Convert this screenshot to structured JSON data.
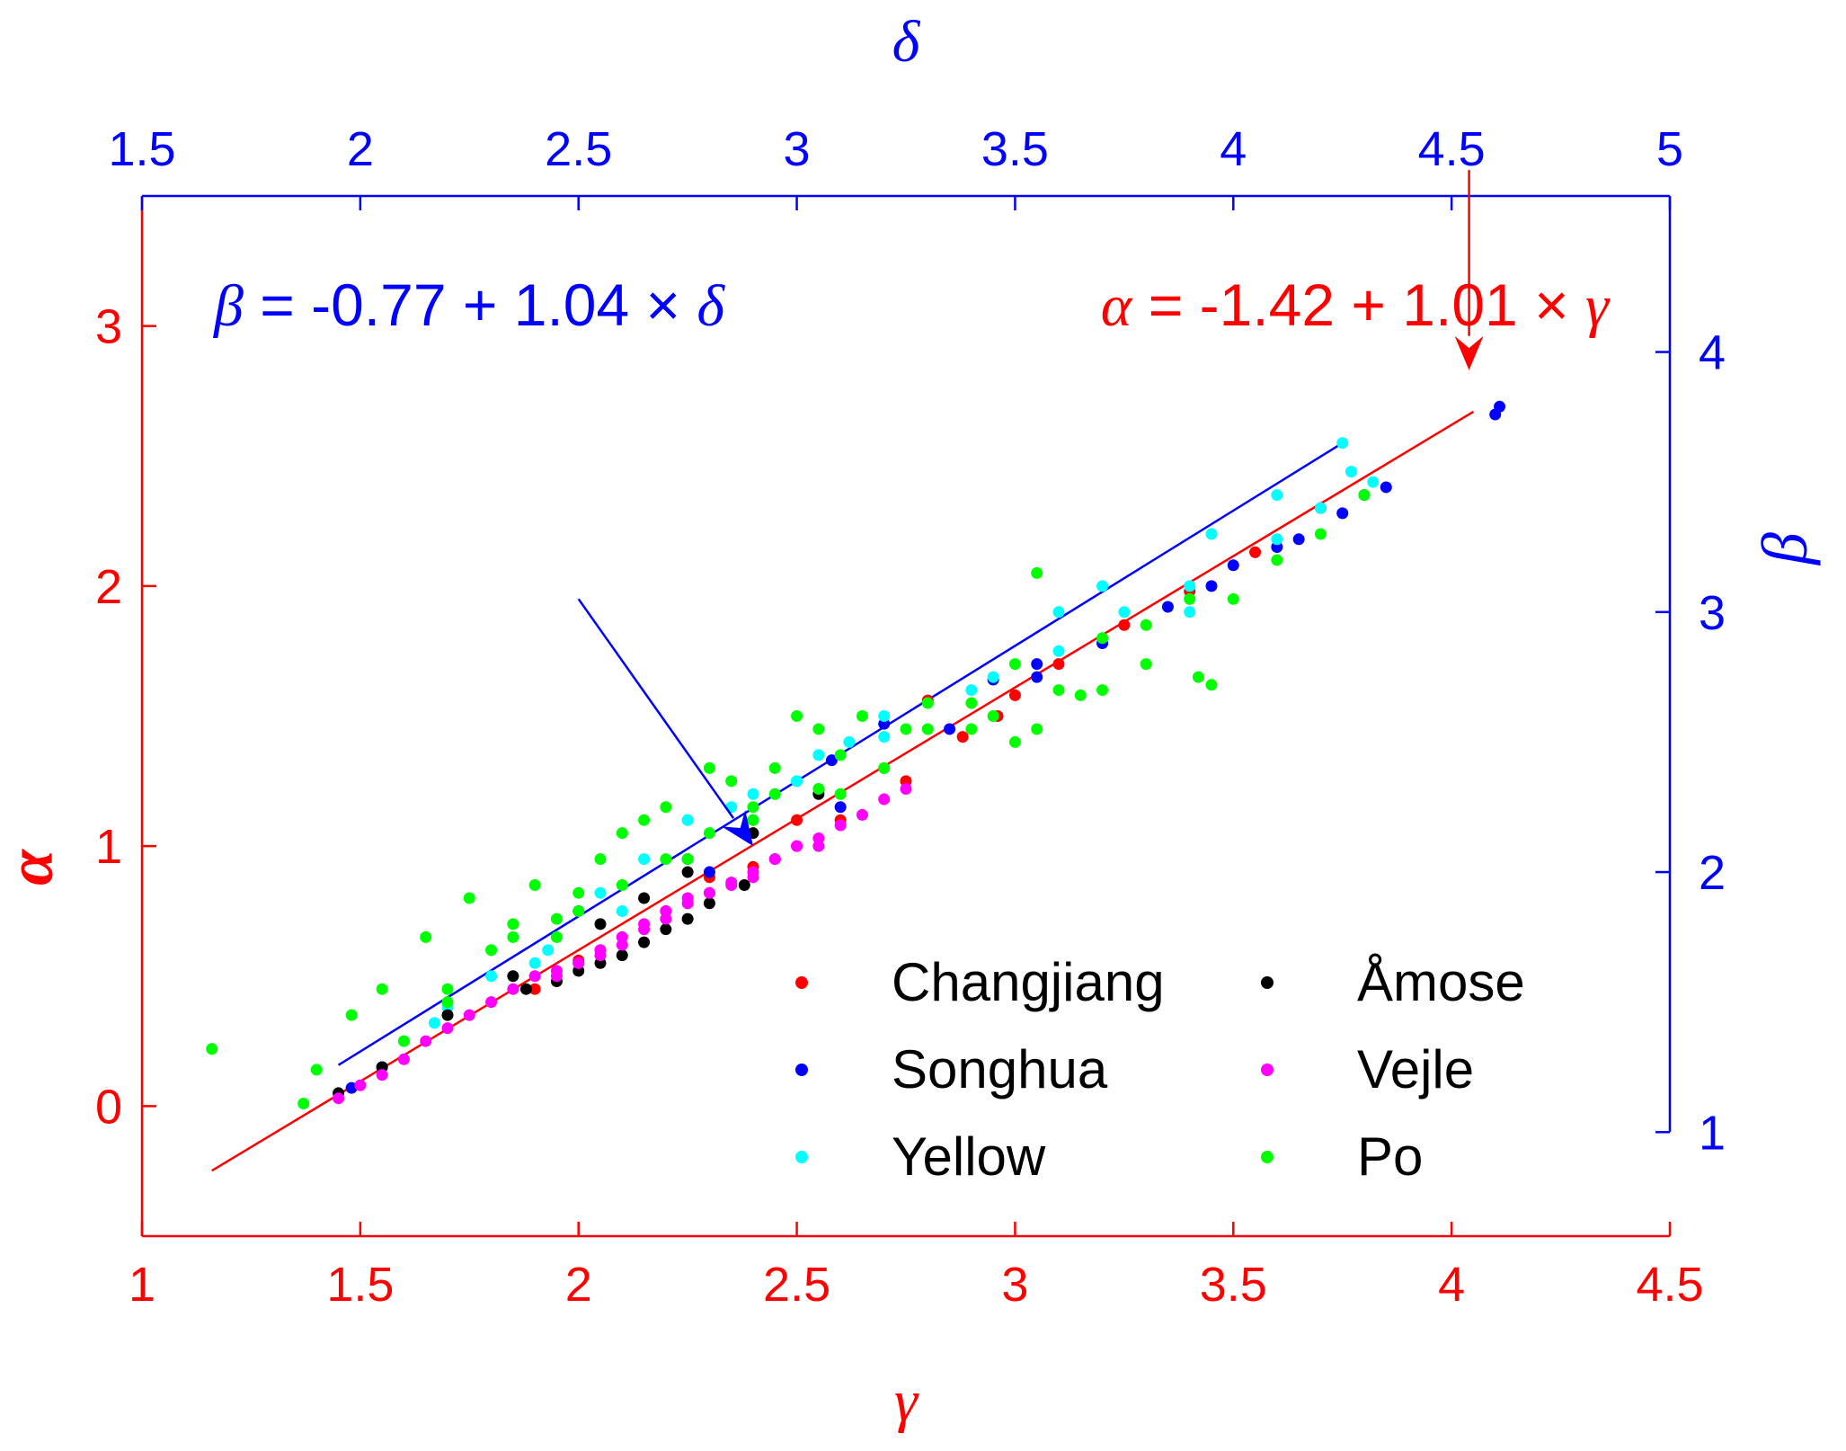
{
  "chart_data": {
    "type": "scatter",
    "colors": {
      "primary_axes": "#ff0000",
      "secondary_axes": "#0000ff",
      "fit_primary": "#ff0000",
      "fit_secondary": "#0000ff"
    },
    "primary_axes": {
      "xlabel": "γ",
      "ylabel": "α",
      "xlim": [
        1,
        4.5
      ],
      "ylim": [
        -0.5,
        3.5
      ],
      "xticks": [
        1,
        1.5,
        2,
        2.5,
        3,
        3.5,
        4,
        4.5
      ],
      "xtick_labels": [
        "1",
        "1.5",
        "2",
        "2.5",
        "3",
        "3.5",
        "4",
        "4.5"
      ],
      "yticks": [
        0,
        1,
        2,
        3
      ],
      "ytick_labels": [
        "0",
        "1",
        "2",
        "3"
      ]
    },
    "secondary_axes": {
      "xlabel": "δ",
      "ylabel": "β",
      "xlim": [
        1.5,
        5
      ],
      "ylim": [
        0.6,
        4.6
      ],
      "xticks": [
        1.5,
        2,
        2.5,
        3,
        3.5,
        4,
        4.5,
        5
      ],
      "xtick_labels": [
        "1.5",
        "2",
        "2.5",
        "3",
        "3.5",
        "4",
        "4.5",
        "5"
      ],
      "yticks": [
        1,
        2,
        3,
        4
      ],
      "ytick_labels": [
        "1",
        "2",
        "3",
        "4"
      ]
    },
    "fits": [
      {
        "axes": "primary",
        "equation_var": "α",
        "equation_mid": " = -1.42 + 1.01 × ",
        "equation_x": "γ",
        "intercept": -1.42,
        "slope": 1.01,
        "x_range": [
          1.16,
          4.05
        ],
        "arrow_from": [
          4.04,
          3.6
        ],
        "arrow_to": [
          4.04,
          2.83
        ]
      },
      {
        "axes": "secondary",
        "equation_var": "β",
        "equation_mid": " = -0.77 + 1.04 × ",
        "equation_x": "δ",
        "intercept": -0.77,
        "slope": 1.04,
        "x_range": [
          1.95,
          4.25
        ],
        "arrow_from": [
          2.5,
          3.05
        ],
        "arrow_to": [
          2.9,
          2.1
        ]
      }
    ],
    "legend": {
      "placement": "bottom-right",
      "columns": 2
    },
    "series": [
      {
        "name": "Changjiang",
        "color": "#ff0000",
        "primary_points": [
          [
            1.9,
            0.45
          ],
          [
            2.05,
            0.6
          ],
          [
            2.2,
            0.75
          ],
          [
            2.4,
            0.92
          ],
          [
            2.6,
            1.1
          ],
          [
            2.75,
            1.25
          ],
          [
            2.88,
            1.42
          ],
          [
            2.96,
            1.5
          ],
          [
            3.0,
            1.58
          ],
          [
            3.1,
            1.7
          ],
          [
            3.25,
            1.85
          ],
          [
            3.4,
            1.98
          ],
          [
            3.55,
            2.13
          ],
          [
            3.7,
            2.3
          ]
        ],
        "secondary_points": [
          [
            2.5,
            1.66
          ],
          [
            2.8,
            1.98
          ],
          [
            3.0,
            2.2
          ],
          [
            3.3,
            2.66
          ]
        ]
      },
      {
        "name": "Songhua",
        "color": "#0000ff",
        "primary_points": [
          [
            2.3,
            0.9
          ],
          [
            2.6,
            1.15
          ],
          [
            2.85,
            1.45
          ],
          [
            3.05,
            1.65
          ],
          [
            3.2,
            1.78
          ],
          [
            3.35,
            1.92
          ],
          [
            3.45,
            2.0
          ],
          [
            3.5,
            2.08
          ],
          [
            3.6,
            2.15
          ],
          [
            3.65,
            2.18
          ],
          [
            3.75,
            2.28
          ],
          [
            3.8,
            2.35
          ],
          [
            3.85,
            2.38
          ],
          [
            4.1,
            2.66
          ],
          [
            4.11,
            2.69
          ]
        ],
        "secondary_points": [
          [
            1.98,
            1.17
          ],
          [
            2.05,
            1.25
          ],
          [
            2.5,
            1.85
          ],
          [
            2.75,
            2.05
          ],
          [
            2.9,
            2.2
          ],
          [
            3.08,
            2.43
          ],
          [
            3.2,
            2.57
          ],
          [
            3.45,
            2.74
          ],
          [
            3.55,
            2.8
          ]
        ]
      },
      {
        "name": "Yellow",
        "color": "#00ffff",
        "primary_points": [
          [
            1.67,
            0.32
          ],
          [
            1.7,
            0.38
          ],
          [
            1.8,
            0.6
          ],
          [
            1.93,
            0.6
          ],
          [
            2.1,
            0.75
          ],
          [
            2.25,
            1.1
          ],
          [
            2.4,
            1.2
          ],
          [
            2.5,
            1.25
          ],
          [
            2.55,
            1.35
          ],
          [
            2.62,
            1.4
          ],
          [
            2.7,
            1.42
          ],
          [
            2.9,
            1.6
          ],
          [
            3.1,
            1.75
          ],
          [
            3.25,
            1.9
          ],
          [
            3.4,
            2.0
          ],
          [
            3.6,
            2.18
          ],
          [
            3.7,
            2.3
          ],
          [
            3.77,
            2.44
          ],
          [
            3.82,
            2.4
          ]
        ],
        "secondary_points": [
          [
            2.1,
            1.35
          ],
          [
            2.3,
            1.6
          ],
          [
            2.4,
            1.65
          ],
          [
            2.55,
            1.92
          ],
          [
            2.65,
            2.05
          ],
          [
            2.75,
            2.2
          ],
          [
            2.85,
            2.25
          ],
          [
            3.0,
            2.35
          ],
          [
            3.2,
            2.6
          ],
          [
            3.45,
            2.75
          ],
          [
            3.6,
            3.0
          ],
          [
            3.7,
            3.1
          ],
          [
            3.9,
            3.0
          ],
          [
            3.95,
            3.3
          ],
          [
            4.1,
            3.45
          ],
          [
            4.25,
            3.65
          ]
        ]
      },
      {
        "name": "Åmose",
        "color": "#000000",
        "primary_points": [
          [
            1.88,
            0.45
          ],
          [
            1.95,
            0.48
          ],
          [
            2.0,
            0.52
          ],
          [
            2.05,
            0.55
          ],
          [
            2.1,
            0.58
          ],
          [
            2.15,
            0.63
          ],
          [
            2.2,
            0.68
          ],
          [
            2.25,
            0.72
          ],
          [
            2.3,
            0.78
          ],
          [
            2.38,
            0.85
          ]
        ],
        "secondary_points": [
          [
            1.95,
            1.15
          ],
          [
            2.05,
            1.25
          ],
          [
            2.2,
            1.45
          ],
          [
            2.35,
            1.6
          ],
          [
            2.55,
            1.8
          ],
          [
            2.65,
            1.9
          ],
          [
            2.75,
            2.0
          ],
          [
            2.9,
            2.15
          ],
          [
            3.05,
            2.3
          ]
        ]
      },
      {
        "name": "Vejle",
        "color": "#ff00ff",
        "primary_points": [
          [
            1.95,
            0.5
          ],
          [
            2.0,
            0.55
          ],
          [
            2.05,
            0.58
          ],
          [
            2.1,
            0.62
          ],
          [
            2.15,
            0.68
          ],
          [
            2.2,
            0.72
          ],
          [
            2.25,
            0.78
          ],
          [
            2.3,
            0.82
          ],
          [
            2.35,
            0.86
          ],
          [
            2.4,
            0.9
          ],
          [
            2.45,
            0.95
          ],
          [
            2.5,
            1.0
          ],
          [
            2.55,
            1.03
          ],
          [
            2.6,
            1.08
          ],
          [
            2.65,
            1.12
          ],
          [
            2.7,
            1.18
          ],
          [
            2.75,
            1.22
          ]
        ],
        "secondary_points": [
          [
            1.95,
            1.13
          ],
          [
            2.0,
            1.18
          ],
          [
            2.05,
            1.22
          ],
          [
            2.1,
            1.28
          ],
          [
            2.15,
            1.35
          ],
          [
            2.2,
            1.4
          ],
          [
            2.25,
            1.45
          ],
          [
            2.3,
            1.5
          ],
          [
            2.35,
            1.55
          ],
          [
            2.4,
            1.6
          ],
          [
            2.45,
            1.62
          ],
          [
            2.5,
            1.65
          ],
          [
            2.55,
            1.7
          ],
          [
            2.6,
            1.75
          ],
          [
            2.65,
            1.8
          ],
          [
            2.7,
            1.85
          ],
          [
            2.75,
            1.9
          ],
          [
            2.8,
            1.92
          ],
          [
            2.85,
            1.95
          ],
          [
            2.9,
            1.98
          ],
          [
            2.95,
            2.05
          ],
          [
            3.0,
            2.1
          ],
          [
            3.05,
            2.1
          ]
        ]
      },
      {
        "name": "Po",
        "color": "#00ff00",
        "primary_points": [
          [
            1.16,
            0.22
          ],
          [
            1.37,
            0.01
          ],
          [
            1.4,
            0.14
          ],
          [
            1.7,
            0.4
          ],
          [
            1.85,
            0.65
          ],
          [
            1.95,
            0.72
          ],
          [
            2.0,
            0.82
          ],
          [
            2.1,
            0.85
          ],
          [
            2.2,
            0.95
          ],
          [
            2.3,
            1.05
          ],
          [
            2.4,
            1.1
          ],
          [
            2.45,
            1.2
          ],
          [
            2.55,
            1.22
          ],
          [
            2.6,
            1.35
          ],
          [
            2.7,
            1.3
          ],
          [
            2.8,
            1.45
          ],
          [
            2.9,
            1.55
          ],
          [
            2.95,
            1.5
          ],
          [
            3.0,
            1.7
          ],
          [
            3.05,
            2.05
          ],
          [
            3.1,
            1.6
          ],
          [
            3.2,
            1.8
          ],
          [
            3.3,
            1.85
          ],
          [
            3.4,
            1.95
          ],
          [
            3.5,
            1.95
          ],
          [
            3.6,
            2.1
          ],
          [
            3.7,
            2.2
          ],
          [
            3.8,
            2.35
          ]
        ],
        "secondary_points": [
          [
            1.98,
            1.45
          ],
          [
            2.05,
            1.55
          ],
          [
            2.1,
            1.35
          ],
          [
            2.15,
            1.75
          ],
          [
            2.2,
            1.55
          ],
          [
            2.25,
            1.9
          ],
          [
            2.3,
            1.7
          ],
          [
            2.35,
            1.8
          ],
          [
            2.4,
            1.95
          ],
          [
            2.45,
            1.75
          ],
          [
            2.5,
            1.85
          ],
          [
            2.55,
            2.05
          ],
          [
            2.6,
            2.15
          ],
          [
            2.65,
            2.2
          ],
          [
            2.7,
            2.25
          ],
          [
            2.75,
            2.05
          ],
          [
            2.8,
            2.4
          ],
          [
            2.85,
            2.35
          ],
          [
            2.9,
            2.25
          ],
          [
            2.95,
            2.4
          ],
          [
            3.0,
            2.6
          ],
          [
            3.05,
            2.55
          ],
          [
            3.1,
            2.3
          ],
          [
            3.15,
            2.6
          ],
          [
            3.2,
            2.4
          ],
          [
            3.25,
            2.55
          ],
          [
            3.3,
            2.65
          ],
          [
            3.4,
            2.55
          ],
          [
            3.5,
            2.5
          ],
          [
            3.55,
            2.55
          ],
          [
            3.65,
            2.68
          ],
          [
            3.7,
            2.7
          ],
          [
            3.8,
            2.8
          ],
          [
            3.92,
            2.75
          ],
          [
            3.95,
            2.72
          ]
        ]
      }
    ]
  }
}
